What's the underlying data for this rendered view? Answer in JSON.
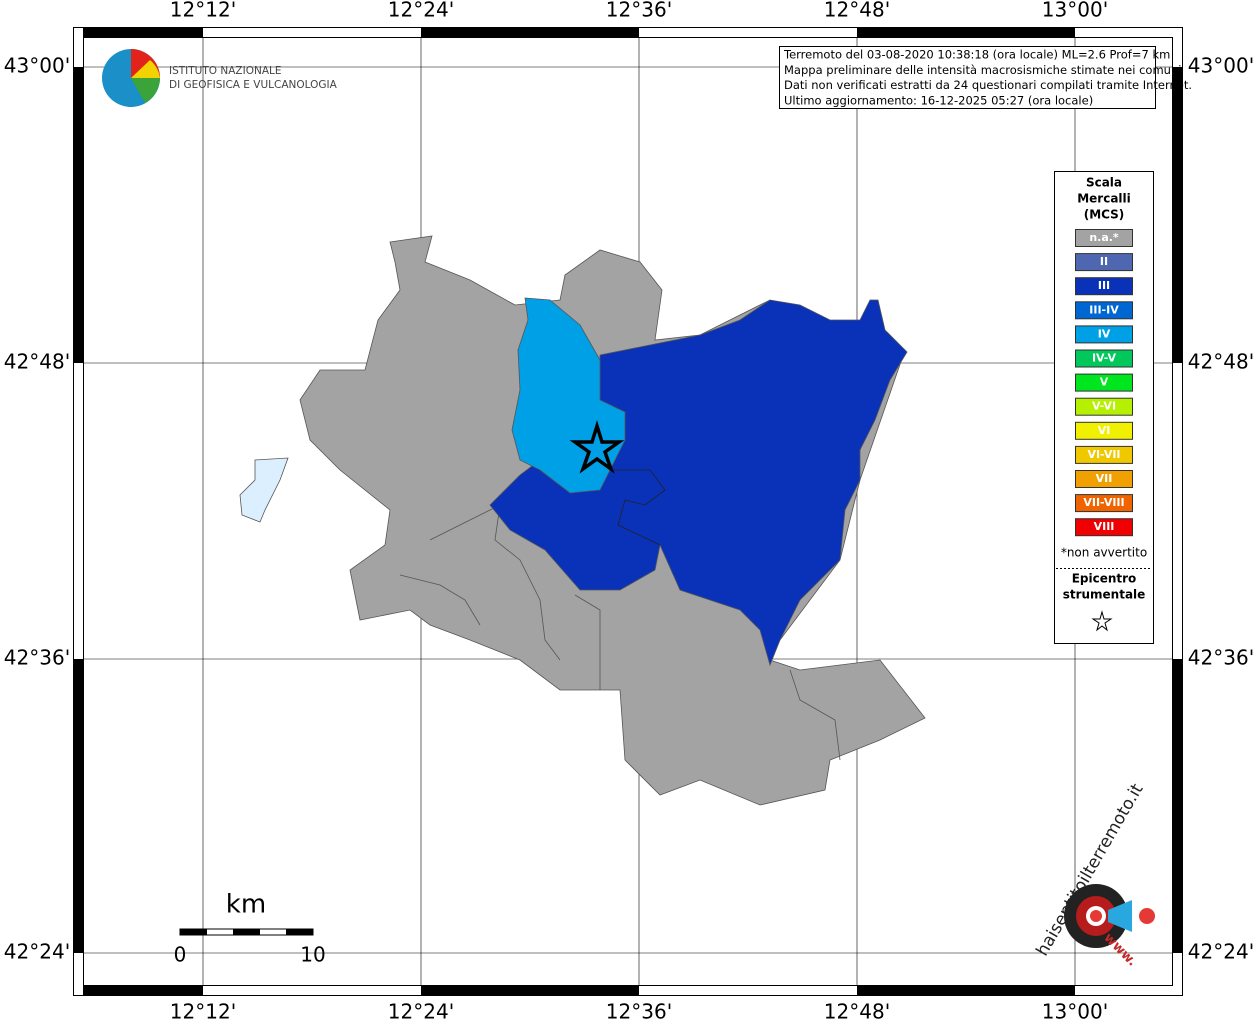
{
  "map": {
    "lon_labels": [
      "12°12'",
      "12°24'",
      "12°36'",
      "12°48'",
      "13°00'"
    ],
    "lat_labels": [
      "43°00'",
      "42°48'",
      "42°36'",
      "42°24'"
    ],
    "logo": {
      "line1": "ISTITUTO NAZIONALE",
      "line2": "DI GEOFISICA E VULCANOLOGIA"
    },
    "info": [
      "Terremoto del 03-08-2020 10:38:18 (ora locale) ML=2.6 Prof=7 km",
      "Mappa preliminare delle intensità macrosismiche stimate nei comuni",
      "Dati non verificati estratti da 24 questionari compilati tramite Internet.",
      "Ultimo aggiornamento: 16-12-2025 05:27 (ora locale)"
    ],
    "legend": {
      "title": [
        "Scala",
        "Mercalli",
        "(MCS)"
      ],
      "items": [
        {
          "label": "n.a.*",
          "color": "#a3a3a3"
        },
        {
          "label": "II",
          "color": "#4f67b0"
        },
        {
          "label": "III",
          "color": "#0a32b8"
        },
        {
          "label": "III-IV",
          "color": "#0066d2"
        },
        {
          "label": "IV",
          "color": "#00a0e6"
        },
        {
          "label": "IV-V",
          "color": "#00c85a"
        },
        {
          "label": "V",
          "color": "#00e61e"
        },
        {
          "label": "V-VI",
          "color": "#b4f000"
        },
        {
          "label": "VI",
          "color": "#f0f000"
        },
        {
          "label": "VI-VII",
          "color": "#f0c800"
        },
        {
          "label": "VII",
          "color": "#f0a000"
        },
        {
          "label": "VII-VIII",
          "color": "#f06400"
        },
        {
          "label": "VIII",
          "color": "#f00000"
        }
      ],
      "note": "*non avvertito",
      "epicenter": [
        "Epicentro",
        "strumentale"
      ]
    },
    "scale_bar": {
      "unit": "km",
      "start": "0",
      "end": "10"
    },
    "badge": {
      "site": "haisentitoilterremoto.it",
      "www": "www."
    }
  }
}
